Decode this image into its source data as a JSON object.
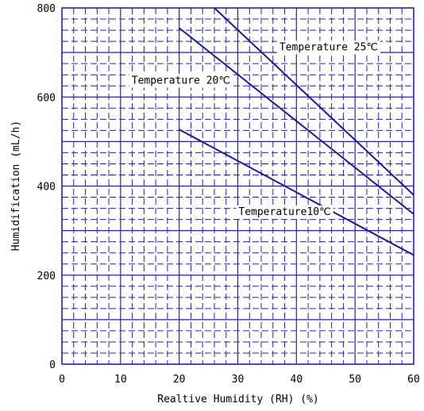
{
  "chart_data": {
    "type": "line",
    "title": "",
    "xlabel": "Realtive Humidity (RH) (%)",
    "ylabel": "Humidification (mL/h)",
    "xlim": [
      0,
      60
    ],
    "ylim": [
      0,
      800
    ],
    "xticks": [
      "0",
      "10",
      "20",
      "30",
      "40",
      "50",
      "60"
    ],
    "yticks": [
      "0",
      "200",
      "400",
      "600",
      "800"
    ],
    "grid": true,
    "colors": {
      "grid": "#2222bb",
      "line": "#1a1aa0",
      "background": "#ffffff"
    },
    "series": [
      {
        "name": "Temperature 25℃",
        "x": [
          26,
          60
        ],
        "y": [
          800,
          380
        ]
      },
      {
        "name": "Temperature 20℃",
        "x": [
          20,
          60
        ],
        "y": [
          755,
          337
        ]
      },
      {
        "name": "Temperature10℃",
        "x": [
          20,
          60
        ],
        "y": [
          527,
          245
        ]
      }
    ]
  }
}
